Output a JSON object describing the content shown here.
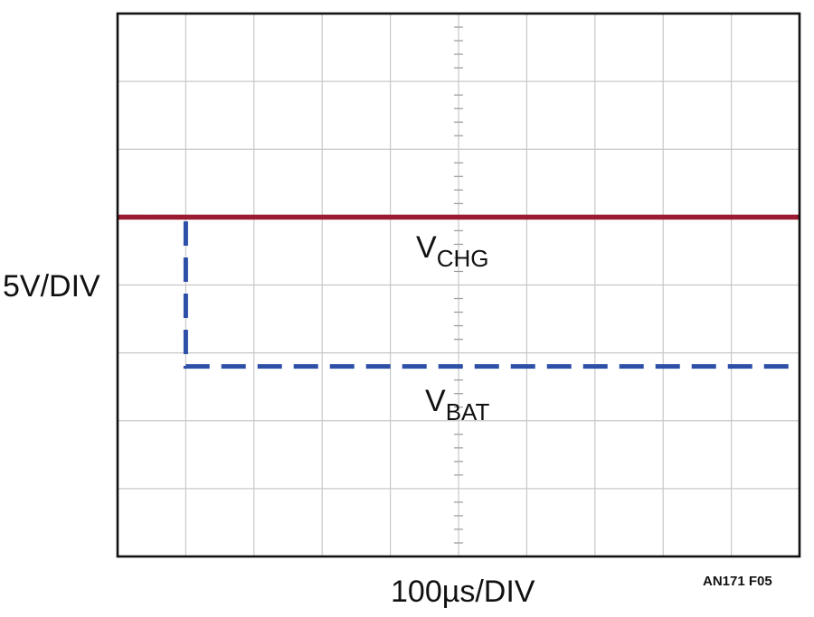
{
  "chart_data": {
    "type": "line",
    "title": "",
    "xlabel": "100µs/DIV",
    "ylabel": "5V/DIV",
    "x_divisions": 10,
    "y_divisions": 8,
    "grid": true,
    "xlim": [
      0,
      10
    ],
    "ylim": [
      -5,
      3
    ],
    "series": [
      {
        "name_main": "V",
        "name_sub": "CHG",
        "color": "#9b1b30",
        "style": "solid",
        "x": [
          0,
          10
        ],
        "y": [
          0,
          0
        ]
      },
      {
        "name_main": "V",
        "name_sub": "BAT",
        "color": "#2e4fa8",
        "style": "dashed",
        "x": [
          0,
          1,
          1,
          10
        ],
        "y": [
          0,
          0,
          -2.2,
          -2.2
        ]
      }
    ],
    "figure_id": "AN171 F05"
  }
}
